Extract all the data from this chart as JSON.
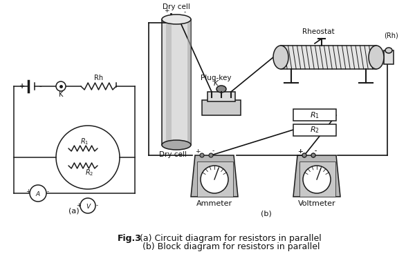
{
  "bg_color": "#ffffff",
  "fig_width": 6.0,
  "fig_height": 3.68,
  "dpi": 100,
  "line_color": "#1a1a1a",
  "text_color": "#111111",
  "caption_bold": "Fig.3",
  "caption_line1": " (a) Circuit diagram for resistors in parallel",
  "caption_line2": "       (b) Block diagram for resistors in parallel",
  "label_a": "(a)",
  "label_b": "(b)",
  "gray_dark": "#888888",
  "gray_mid": "#aaaaaa",
  "gray_light": "#cccccc",
  "gray_lighter": "#dddddd",
  "gray_body": "#b8b8b8"
}
